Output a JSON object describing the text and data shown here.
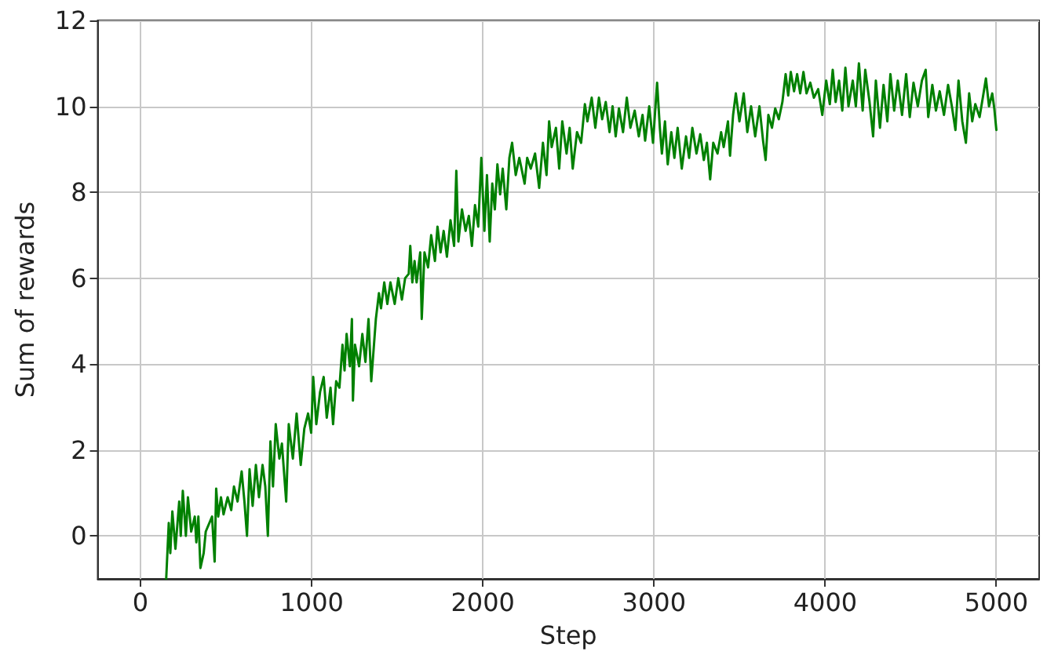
{
  "chart_data": {
    "type": "line",
    "xlabel": "Step",
    "ylabel": "Sum of rewards",
    "color": "#008000",
    "grid": true,
    "xlim": [
      -250,
      5250
    ],
    "xticks": [
      0,
      1000,
      2000,
      3000,
      4000,
      5000
    ],
    "ylim": [
      -1,
      12
    ],
    "yticks": [
      0,
      2,
      4,
      6,
      8,
      10,
      12
    ],
    "x": [
      150,
      165,
      174,
      186,
      204,
      226,
      235,
      247,
      265,
      277,
      296,
      317,
      326,
      338,
      350,
      369,
      381,
      418,
      433,
      442,
      454,
      470,
      485,
      509,
      530,
      546,
      567,
      591,
      607,
      622,
      637,
      655,
      674,
      692,
      713,
      729,
      744,
      759,
      774,
      790,
      811,
      826,
      851,
      866,
      890,
      912,
      936,
      957,
      979,
      997,
      1009,
      1027,
      1049,
      1070,
      1088,
      1110,
      1125,
      1143,
      1162,
      1180,
      1192,
      1204,
      1223,
      1235,
      1241,
      1253,
      1277,
      1296,
      1314,
      1332,
      1348,
      1375,
      1393,
      1405,
      1424,
      1442,
      1460,
      1485,
      1506,
      1527,
      1546,
      1567,
      1576,
      1588,
      1601,
      1613,
      1634,
      1643,
      1659,
      1680,
      1698,
      1720,
      1735,
      1753,
      1771,
      1790,
      1811,
      1832,
      1845,
      1857,
      1878,
      1899,
      1918,
      1936,
      1954,
      1973,
      1991,
      2009,
      2024,
      2040,
      2055,
      2070,
      2085,
      2101,
      2116,
      2137,
      2155,
      2171,
      2192,
      2213,
      2244,
      2259,
      2280,
      2305,
      2329,
      2351,
      2372,
      2387,
      2402,
      2427,
      2446,
      2464,
      2489,
      2507,
      2525,
      2550,
      2574,
      2596,
      2611,
      2636,
      2657,
      2678,
      2697,
      2718,
      2740,
      2758,
      2776,
      2795,
      2819,
      2841,
      2862,
      2887,
      2911,
      2933,
      2948,
      2972,
      2994,
      3018,
      3034,
      3046,
      3064,
      3080,
      3101,
      3119,
      3138,
      3162,
      3187,
      3205,
      3224,
      3248,
      3270,
      3291,
      3309,
      3328,
      3346,
      3371,
      3392,
      3407,
      3432,
      3444,
      3462,
      3478,
      3499,
      3524,
      3545,
      3567,
      3591,
      3616,
      3637,
      3652,
      3668,
      3689,
      3708,
      3729,
      3750,
      3769,
      3784,
      3799,
      3818,
      3836,
      3854,
      3873,
      3891,
      3913,
      3934,
      3959,
      3983,
      4006,
      4027,
      4044,
      4061,
      4081,
      4100,
      4118,
      4136,
      4161,
      4179,
      4197,
      4219,
      4234,
      4259,
      4280,
      4296,
      4320,
      4341,
      4363,
      4381,
      4403,
      4424,
      4449,
      4473,
      4494,
      4516,
      4541,
      4565,
      4587,
      4602,
      4626,
      4647,
      4669,
      4694,
      4718,
      4740,
      4761,
      4779,
      4801,
      4822,
      4841,
      4859,
      4877,
      4902,
      4923,
      4939,
      4957,
      4976,
      4988,
      5000
    ],
    "values": [
      -1,
      0.3,
      -0.4,
      0.57,
      -0.3,
      0.8,
      0,
      1.05,
      0,
      0.9,
      0.1,
      0.45,
      -0.15,
      0.45,
      -0.75,
      -0.4,
      0.1,
      0.45,
      -0.6,
      1.1,
      0.45,
      0.9,
      0.5,
      0.9,
      0.6,
      1.15,
      0.8,
      1.5,
      0.8,
      0,
      1.55,
      0.7,
      1.65,
      0.9,
      1.65,
      1.15,
      0,
      2.2,
      1.15,
      2.6,
      1.8,
      2.15,
      0.8,
      2.6,
      1.8,
      2.85,
      1.65,
      2.5,
      2.85,
      2.4,
      3.7,
      2.6,
      3.35,
      3.7,
      2.75,
      3.45,
      2.6,
      3.6,
      3.45,
      4.45,
      3.85,
      4.7,
      3.95,
      5.05,
      3.15,
      4.45,
      3.95,
      4.7,
      4.05,
      5.05,
      3.6,
      5.05,
      5.65,
      5.3,
      5.9,
      5.4,
      5.9,
      5.4,
      6,
      5.5,
      6,
      6.1,
      6.75,
      5.9,
      6.4,
      5.9,
      6.6,
      5.05,
      6.6,
      6.25,
      7,
      6.4,
      7.2,
      6.6,
      7.1,
      6.5,
      7.35,
      6.75,
      8.5,
      6.85,
      7.6,
      7.1,
      7.45,
      6.75,
      7.7,
      7.2,
      8.8,
      7.1,
      8.4,
      6.85,
      8.2,
      7.6,
      8.65,
      7.95,
      8.55,
      7.6,
      8.8,
      9.15,
      8.4,
      8.8,
      8.2,
      8.8,
      8.55,
      8.9,
      8.1,
      9.15,
      8.4,
      9.65,
      9.05,
      9.5,
      8.55,
      9.65,
      8.9,
      9.5,
      8.55,
      9.4,
      9.15,
      10.05,
      9.65,
      10.2,
      9.5,
      10.2,
      9.7,
      10.1,
      9.4,
      10,
      9.3,
      9.95,
      9.4,
      10.2,
      9.5,
      9.9,
      9.3,
      9.8,
      9.2,
      10,
      9.15,
      10.55,
      9.5,
      8.9,
      9.65,
      8.65,
      9.4,
      8.8,
      9.5,
      8.55,
      9.3,
      8.8,
      9.5,
      8.9,
      9.35,
      8.75,
      9.15,
      8.3,
      9.15,
      8.9,
      9.4,
      9.05,
      9.65,
      8.85,
      9.8,
      10.3,
      9.65,
      10.3,
      9.4,
      10,
      9.3,
      10,
      9.2,
      8.75,
      9.8,
      9.5,
      9.95,
      9.7,
      10.1,
      10.75,
      10.25,
      10.8,
      10.35,
      10.75,
      10.3,
      10.8,
      10.3,
      10.55,
      10.2,
      10.4,
      9.8,
      10.6,
      10.05,
      10.85,
      10.1,
      10.6,
      9.9,
      10.9,
      10,
      10.6,
      10,
      11,
      9.9,
      10.85,
      10.1,
      9.3,
      10.6,
      9.5,
      10.5,
      9.65,
      10.75,
      9.9,
      10.6,
      9.8,
      10.75,
      9.75,
      10.55,
      10,
      10.6,
      10.85,
      9.75,
      10.5,
      9.9,
      10.35,
      9.8,
      10.5,
      10,
      9.45,
      10.6,
      9.65,
      9.15,
      10.3,
      9.65,
      10.05,
      9.75,
      10.25,
      10.65,
      10,
      10.3,
      9.95,
      9.45
    ]
  }
}
